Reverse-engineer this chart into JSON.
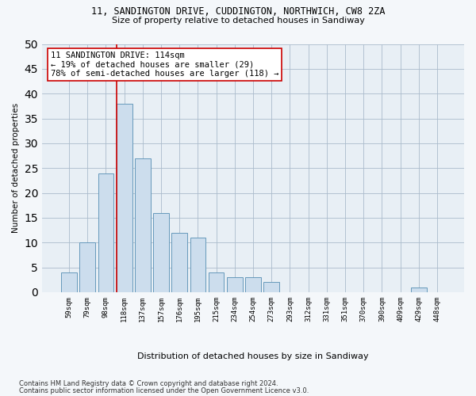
{
  "title_line1": "11, SANDINGTON DRIVE, CUDDINGTON, NORTHWICH, CW8 2ZA",
  "title_line2": "Size of property relative to detached houses in Sandiway",
  "xlabel": "Distribution of detached houses by size in Sandiway",
  "ylabel": "Number of detached properties",
  "categories": [
    "59sqm",
    "79sqm",
    "98sqm",
    "118sqm",
    "137sqm",
    "157sqm",
    "176sqm",
    "195sqm",
    "215sqm",
    "234sqm",
    "254sqm",
    "273sqm",
    "293sqm",
    "312sqm",
    "331sqm",
    "351sqm",
    "370sqm",
    "390sqm",
    "409sqm",
    "429sqm",
    "448sqm"
  ],
  "values": [
    4,
    10,
    24,
    38,
    27,
    16,
    12,
    11,
    4,
    3,
    3,
    2,
    0,
    0,
    0,
    0,
    0,
    0,
    0,
    1,
    0
  ],
  "bar_color": "#ccdded",
  "bar_edge_color": "#6699bb",
  "property_index": 3,
  "property_label": "11 SANDINGTON DRIVE: 114sqm",
  "annotation_line1": "← 19% of detached houses are smaller (29)",
  "annotation_line2": "78% of semi-detached houses are larger (118) →",
  "vline_color": "#cc0000",
  "ylim": [
    0,
    50
  ],
  "yticks": [
    0,
    5,
    10,
    15,
    20,
    25,
    30,
    35,
    40,
    45,
    50
  ],
  "grid_color": "#aabbcc",
  "footnote_line1": "Contains HM Land Registry data © Crown copyright and database right 2024.",
  "footnote_line2": "Contains public sector information licensed under the Open Government Licence v3.0.",
  "background_color": "#f4f7fa",
  "plot_bg_color": "#e8eff5"
}
